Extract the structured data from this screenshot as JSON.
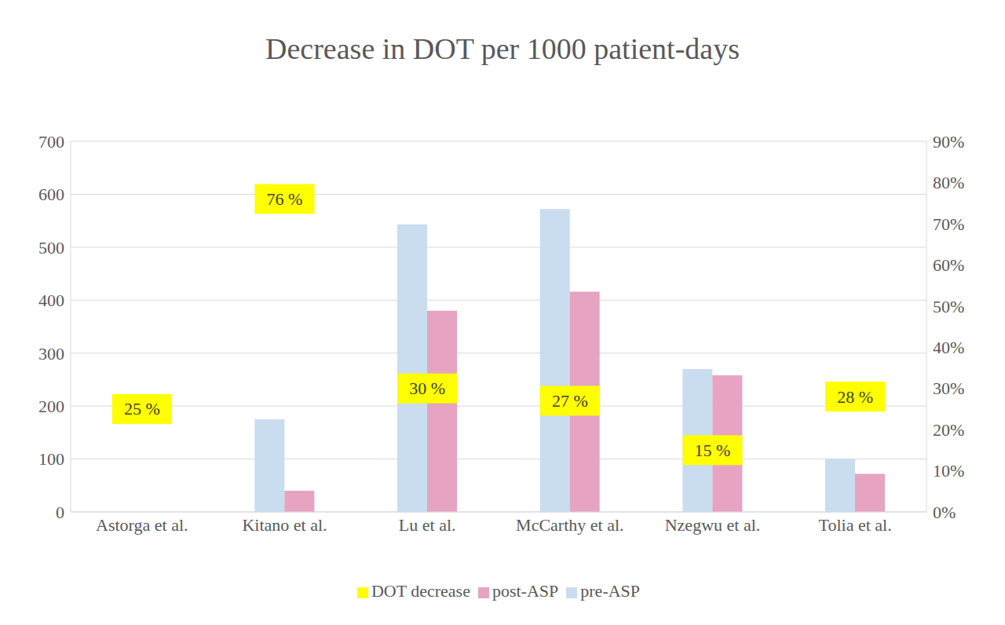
{
  "chart_data": {
    "type": "bar",
    "title": "Decrease in DOT per 1000 patient-days",
    "categories": [
      "Astorga et al.",
      "Kitano et al.",
      "Lu et al.",
      "McCarthy et al.",
      "Nzegwu et al.",
      "Tolia et al."
    ],
    "series": [
      {
        "name": "pre-ASP",
        "color": "#c9dcf0",
        "values": [
          null,
          175,
          543,
          572,
          270,
          100
        ]
      },
      {
        "name": "post-ASP",
        "color": "#e6a3c2",
        "values": [
          null,
          40,
          380,
          416,
          258,
          72
        ]
      },
      {
        "name": "DOT decrease",
        "type": "line",
        "marker": "square",
        "line_style": "none",
        "color": "#ffff00",
        "axis": "y2",
        "data_labels": true,
        "values": [
          25,
          76,
          30,
          27,
          15,
          28
        ],
        "value_labels": [
          "25 %",
          "76 %",
          "30 %",
          "27 %",
          "15 %",
          "28 %"
        ]
      }
    ],
    "ylim": [
      0,
      700
    ],
    "yticks": [
      0,
      100,
      200,
      300,
      400,
      500,
      600,
      700
    ],
    "y2lim": [
      0,
      90
    ],
    "y2ticks": [
      {
        "value": 0,
        "label": "0%"
      },
      {
        "value": 10,
        "label": "10%"
      },
      {
        "value": 20,
        "label": "20%"
      },
      {
        "value": 30,
        "label": "30%"
      },
      {
        "value": 40,
        "label": "40%"
      },
      {
        "value": 50,
        "label": "50%"
      },
      {
        "value": 60,
        "label": "60%"
      },
      {
        "value": 70,
        "label": "70%"
      },
      {
        "value": 80,
        "label": "80%"
      },
      {
        "value": 90,
        "label": "90%"
      }
    ],
    "grid": true,
    "legend": "bottom"
  }
}
